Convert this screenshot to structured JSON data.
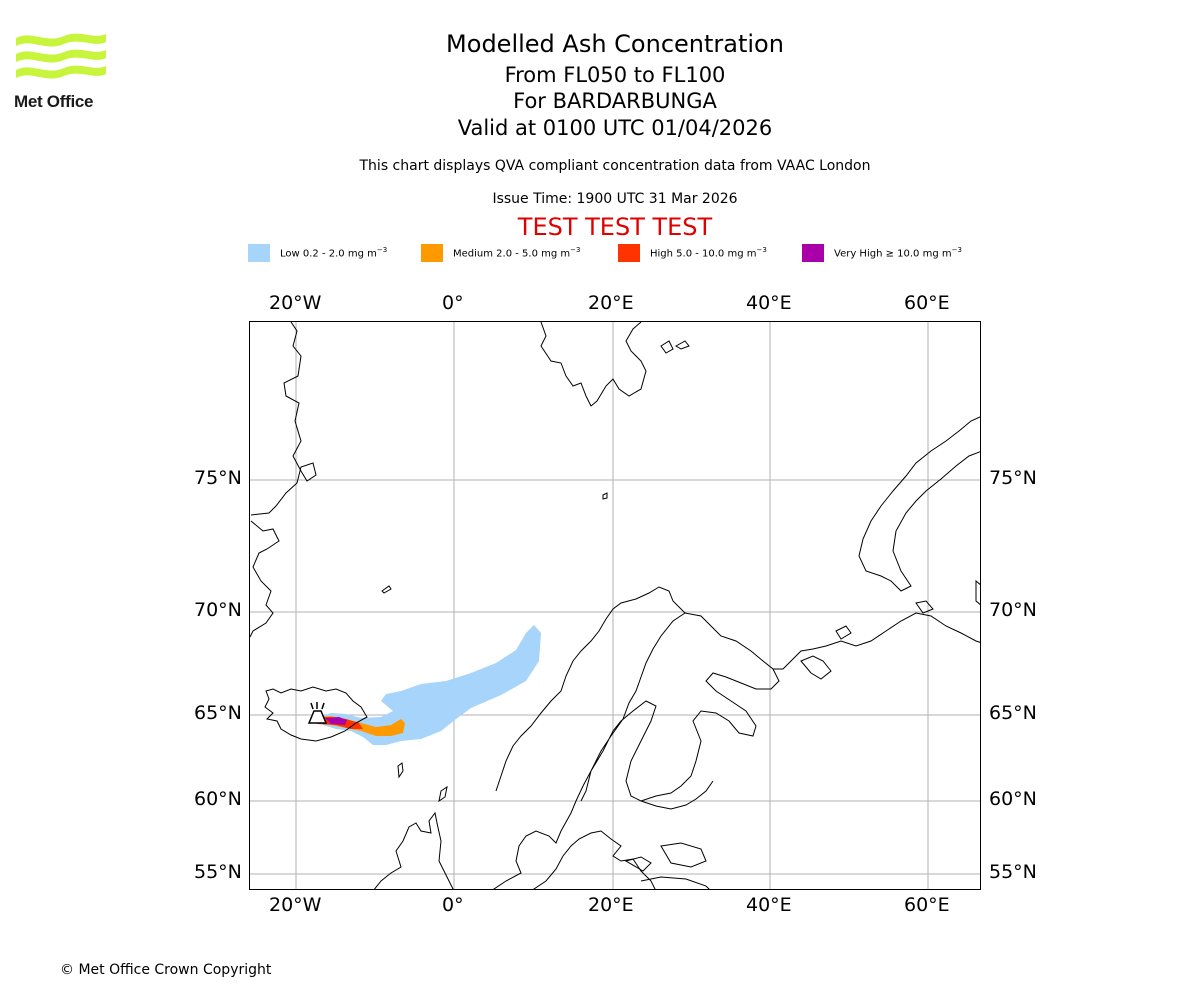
{
  "logo": {
    "name": "Met Office"
  },
  "header": {
    "title": "Modelled Ash Concentration",
    "levels": "From FL050 to FL100",
    "volcano": "For BARDARBUNGA",
    "valid": "Valid at 0100 UTC 01/04/2026",
    "description": "This chart displays QVA compliant concentration data from VAAC London",
    "issue_time": "Issue Time: 1900 UTC 31 Mar 2026",
    "test_banner": "TEST TEST TEST"
  },
  "legend": [
    {
      "label": "Low 0.2 - 2.0 mg m",
      "color": "#a6d4fa"
    },
    {
      "label": "Medium 2.0 - 5.0 mg m",
      "color": "#ff9900"
    },
    {
      "label": "High 5.0 - 10.0 mg m",
      "color": "#ff3300"
    },
    {
      "label": "Very High ≥ 10.0 mg m",
      "color": "#aa00aa"
    }
  ],
  "legend_unit_exp": "−3",
  "axes": {
    "lon_labels": [
      "20°W",
      "0°",
      "20°E",
      "40°E",
      "60°E"
    ],
    "lat_labels": [
      "75°N",
      "70°N",
      "65°N",
      "60°N",
      "55°N"
    ]
  },
  "colors": {
    "grid": "#b0b0b0",
    "coast": "#000000",
    "test": "#e00000",
    "logo_green": "#c8f53c"
  },
  "footer": {
    "copyright": "© Met Office Crown Copyright"
  }
}
